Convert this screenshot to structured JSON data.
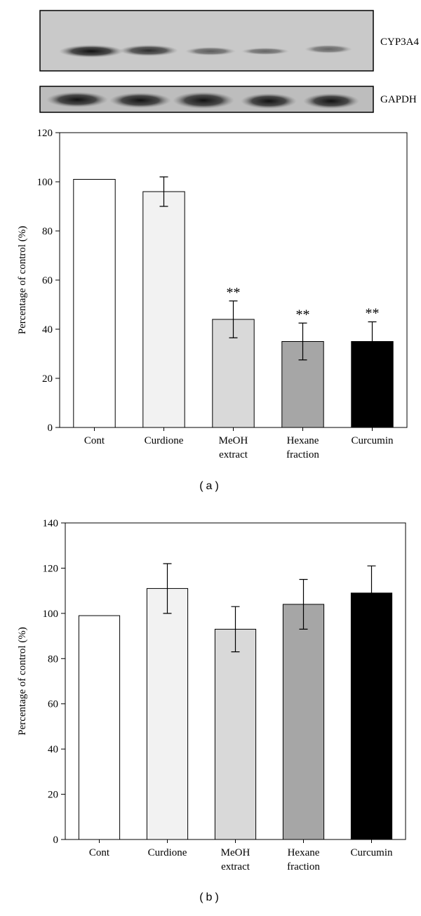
{
  "blots": [
    "CYP3A4",
    "GAPDH"
  ],
  "chart_data": [
    {
      "type": "bar",
      "caption": "(a)",
      "y_label": "Percentage of control (%)",
      "categories": [
        "Cont",
        "Curdione",
        "MeOH extract",
        "Hexane fraction",
        "Curcumin"
      ],
      "values": [
        101,
        96,
        44,
        35,
        35
      ],
      "errors": [
        null,
        6,
        7.5,
        7.5,
        8
      ],
      "value_annotations": [
        null,
        null,
        "**",
        "**",
        "**"
      ],
      "colors": [
        "#ffffff",
        "#f2f2f2",
        "#d9d9d9",
        "#a6a6a6",
        "#000000"
      ],
      "ylim": [
        0,
        120
      ],
      "yticks": [
        0,
        20,
        40,
        60,
        80,
        100,
        120
      ]
    },
    {
      "type": "bar",
      "caption": "(b)",
      "y_label": "Percentage of control (%)",
      "categories": [
        "Cont",
        "Curdione",
        "MeOH extract",
        "Hexane fraction",
        "Curcumin"
      ],
      "values": [
        99,
        111,
        93,
        104,
        109
      ],
      "errors": [
        null,
        11,
        10,
        11,
        12
      ],
      "colors": [
        "#ffffff",
        "#f2f2f2",
        "#d9d9d9",
        "#a6a6a6",
        "#000000"
      ],
      "ylim": [
        0,
        140
      ],
      "yticks": [
        0,
        20,
        40,
        60,
        80,
        100,
        120,
        140
      ]
    }
  ]
}
